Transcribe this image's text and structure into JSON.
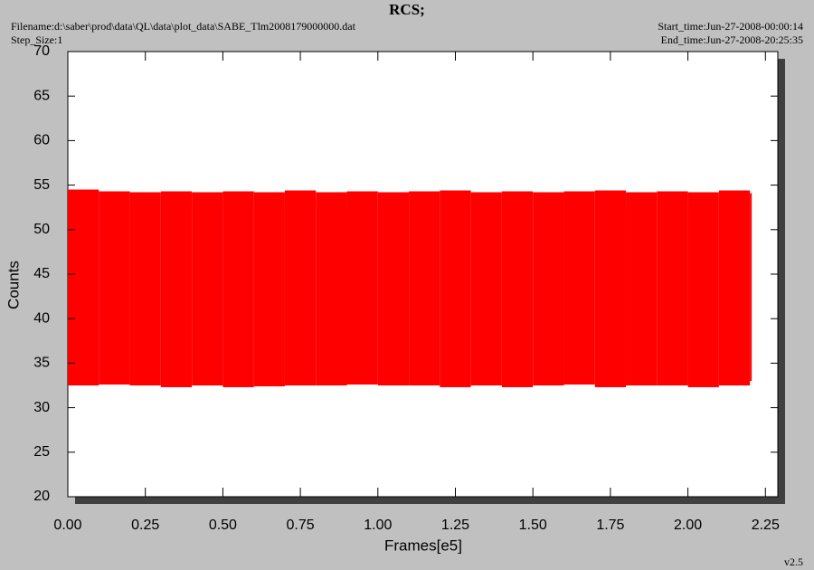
{
  "chart_data": {
    "type": "band",
    "title": "RCS;",
    "filename": "Filename:d:\\saber\\prod\\data\\QL\\data\\plot_data\\SABE_Tlm2008179000000.dat",
    "step_size": "Step_Size:1",
    "start_time": "Start_time:Jun-27-2008-00:00:14",
    "end_time": "End_time:Jun-27-2008-20:25:35",
    "version": "v2.5",
    "xlabel": "Frames[e5]",
    "ylabel": "Counts",
    "color": "#ff0000",
    "x": [
      0,
      0.1,
      0.2,
      0.3,
      0.4,
      0.5,
      0.6,
      0.7,
      0.8,
      0.9,
      1.0,
      1.1,
      1.2,
      1.3,
      1.4,
      1.5,
      1.6,
      1.7,
      1.8,
      1.9,
      2.0,
      2.1,
      2.2
    ],
    "high": [
      54.5,
      54.3,
      54.2,
      54.3,
      54.2,
      54.3,
      54.2,
      54.4,
      54.2,
      54.3,
      54.2,
      54.3,
      54.4,
      54.2,
      54.3,
      54.2,
      54.3,
      54.4,
      54.2,
      54.3,
      54.2,
      54.4,
      54.1
    ],
    "low": [
      32.5,
      32.6,
      32.5,
      32.3,
      32.5,
      32.3,
      32.4,
      32.5,
      32.5,
      32.6,
      32.5,
      32.5,
      32.3,
      32.5,
      32.3,
      32.5,
      32.6,
      32.3,
      32.5,
      32.5,
      32.3,
      32.5,
      33.0
    ],
    "xlim": [
      0,
      2.29
    ],
    "xticks": [
      {
        "value": 0,
        "label": "0.00"
      },
      {
        "value": 0.25,
        "label": "0.25"
      },
      {
        "value": 0.5,
        "label": "0.50"
      },
      {
        "value": 0.75,
        "label": "0.75"
      },
      {
        "value": 1,
        "label": "1.00"
      },
      {
        "value": 1.25,
        "label": "1.25"
      },
      {
        "value": 1.5,
        "label": "1.50"
      },
      {
        "value": 1.75,
        "label": "1.75"
      },
      {
        "value": 2,
        "label": "2.00"
      },
      {
        "value": 2.25,
        "label": "2.25"
      }
    ],
    "ylim": [
      20,
      70
    ],
    "yticks": [
      20,
      25,
      30,
      35,
      40,
      45,
      50,
      55,
      60,
      65,
      70
    ]
  }
}
